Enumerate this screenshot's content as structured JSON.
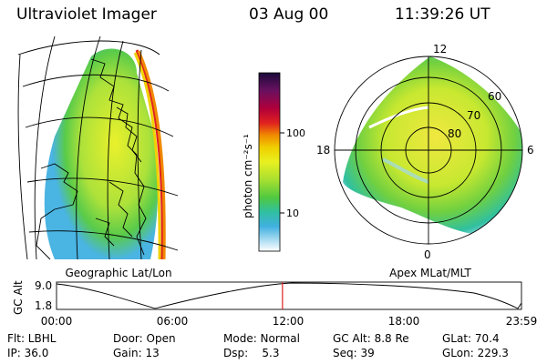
{
  "header": {
    "title": "Ultraviolet Imager",
    "date": "03 Aug 00",
    "time": "11:39:26 UT"
  },
  "left_panel": {
    "caption": "Geographic Lat/Lon"
  },
  "colorbar": {
    "unit_label": "photon cm⁻²s⁻¹",
    "tick_labels": [
      "100",
      "10"
    ],
    "colors": [
      "#1a0a3a",
      "#6a1060",
      "#b0003a",
      "#e02020",
      "#f08a00",
      "#f0d000",
      "#e8f020",
      "#a8e030",
      "#50c840",
      "#30c0a0",
      "#40b0e0",
      "#a0d8f0",
      "#ffffff"
    ]
  },
  "right_panel": {
    "caption": "Apex MLat/MLT",
    "mlt_labels": [
      "12",
      "18",
      "6",
      "0"
    ],
    "mlat_labels": [
      "60",
      "70",
      "80"
    ]
  },
  "altitude_plot": {
    "ylabel": "GC Alt",
    "ytick_labels": [
      "9.0",
      "1.8"
    ],
    "xtick_labels": [
      "00:00",
      "06:00",
      "12:00",
      "18:00",
      "23:59"
    ],
    "current_time_fraction": 0.486
  },
  "info": {
    "row1": [
      "Flt: LBHL",
      "Door: Open",
      "Mode: Normal",
      "GC Alt: 8.8 Re",
      "GLat: 70.4"
    ],
    "row2": [
      "IP: 36.0",
      "Gain: 13",
      "Dsp:    5.3",
      "Seq: 39",
      "GLon: 229.3"
    ]
  }
}
